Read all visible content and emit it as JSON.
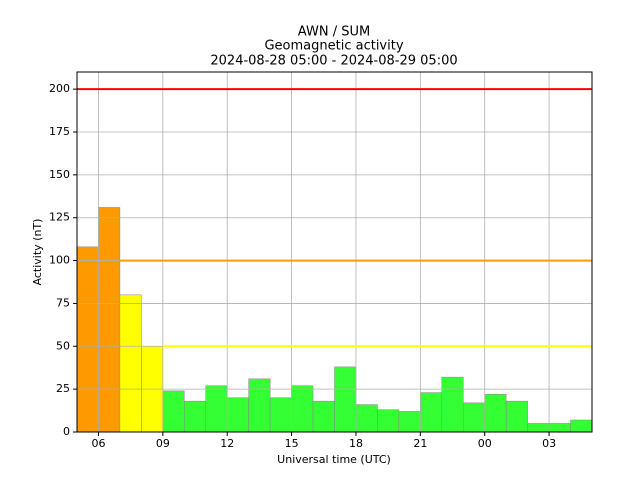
{
  "chart_data": {
    "type": "histogram",
    "title": [
      "AWN / SUM",
      "Geomagnetic activity",
      "2024-08-28 05:00 - 2024-08-29 05:00"
    ],
    "xlabel": "Universal time (UTC)",
    "ylabel": "Activity (nT)",
    "bins": [
      5,
      6,
      7,
      8,
      9,
      10,
      11,
      12,
      13,
      14,
      15,
      16,
      17,
      18,
      19,
      20,
      21,
      22,
      23,
      24,
      25,
      26,
      27,
      28,
      29
    ],
    "values": [
      108,
      131,
      80,
      50,
      24,
      18,
      27,
      20,
      31,
      20,
      27,
      18,
      38,
      16,
      13,
      12,
      23,
      32,
      17,
      22,
      18,
      5,
      5,
      7
    ],
    "colors": [
      "#ff9900",
      "#ff9900",
      "#ffff00",
      "#ffff00",
      "#33ff33",
      "#33ff33",
      "#33ff33",
      "#33ff33",
      "#33ff33",
      "#33ff33",
      "#33ff33",
      "#33ff33",
      "#33ff33",
      "#33ff33",
      "#33ff33",
      "#33ff33",
      "#33ff33",
      "#33ff33",
      "#33ff33",
      "#33ff33",
      "#33ff33",
      "#33ff33",
      "#33ff33",
      "#33ff33"
    ],
    "thresholds": [
      {
        "value": 200,
        "color": "#ff0000",
        "from": 5
      },
      {
        "value": 100,
        "color": "#ff9900",
        "from": 7
      },
      {
        "value": 50,
        "color": "#ffff00",
        "from": 9
      }
    ],
    "xlim": [
      5,
      29
    ],
    "xticks": [
      {
        "value": 6,
        "label": "06"
      },
      {
        "value": 9,
        "label": "09"
      },
      12,
      15,
      18,
      21,
      {
        "value": 24,
        "label": "00"
      },
      {
        "value": 27,
        "label": "03"
      }
    ],
    "ylim": [
      0,
      210
    ],
    "yticks": [
      0,
      25,
      50,
      75,
      100,
      125,
      150,
      175,
      200
    ],
    "grid": true
  }
}
